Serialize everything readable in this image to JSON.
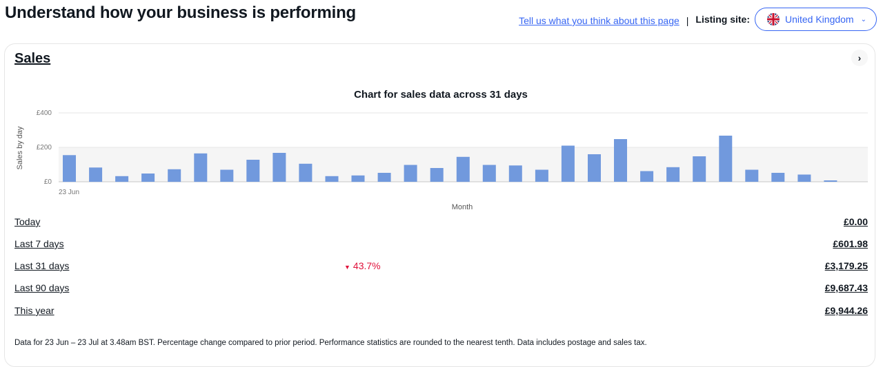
{
  "header": {
    "title": "Understand how your business is performing",
    "feedback_link": "Tell us what you think about this page",
    "separator": "|",
    "listing_site_label": "Listing site:",
    "listing_site_value": "United Kingdom"
  },
  "sales_card": {
    "title": "Sales",
    "rows": [
      {
        "label": "Today",
        "value": "£0.00",
        "change": ""
      },
      {
        "label": "Last 7 days",
        "value": "£601.98",
        "change": ""
      },
      {
        "label": "Last 31 days",
        "value": "£3,179.25",
        "change": "43.7%",
        "change_direction": "down"
      },
      {
        "label": "Last 90 days",
        "value": "£9,687.43",
        "change": ""
      },
      {
        "label": "This year",
        "value": "£9,944.26",
        "change": ""
      }
    ],
    "footnote": "Data for 23 Jun – 23 Jul at 3.48am BST. Percentage change compared to prior period. Performance statistics are rounded to the nearest tenth. Data includes postage and sales tax."
  },
  "chart_data": {
    "type": "bar",
    "title": "Chart for sales data across 31 days",
    "xlabel": "Month",
    "ylabel": "Sales by day",
    "ylim": [
      0,
      400
    ],
    "y_ticks": [
      0,
      200,
      400
    ],
    "y_tick_labels": [
      "£0",
      "£200",
      "£400"
    ],
    "x_tick_labels": [
      "23 Jun"
    ],
    "values": [
      155,
      83,
      33,
      48,
      73,
      165,
      70,
      128,
      168,
      105,
      33,
      37,
      52,
      98,
      80,
      145,
      98,
      95,
      70,
      210,
      160,
      248,
      62,
      85,
      148,
      268,
      70,
      52,
      42,
      8
    ],
    "bar_color": "#7199dd",
    "band_color": "#f5f5f5",
    "grid": true,
    "legend": "none"
  },
  "colors": {
    "accent": "#3665f3",
    "negative": "#e0103a",
    "text": "#111820"
  },
  "icons": {
    "flag": "uk-flag-icon",
    "dropdown": "chevron-down-icon",
    "card_arrow": "chevron-right-icon",
    "trend": "triangle-down-icon"
  }
}
